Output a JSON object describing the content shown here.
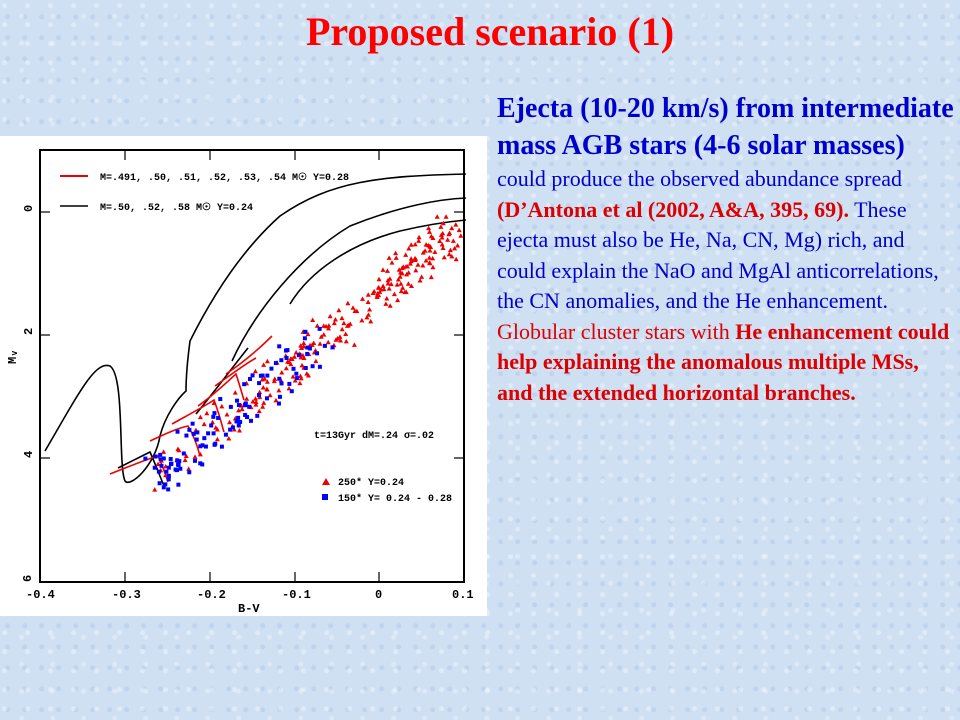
{
  "slide": {
    "title": "Proposed scenario (1)",
    "heading": "Ejecta (10-20 km/s) from intermediate mass AGB stars (4-6 solar masses)",
    "para1_blue": "could produce the observed abundance spread ",
    "para1_red_citation": "(D’Antona et al (2002, A&A, 395, 69).",
    "para1_blue_end": " These ejecta must also be He, Na, CN, Mg) rich, and could explain the NaO and MgAl anticorrelations, the CN anomalies, and the He enhancement.",
    "para2_red": "Globular cluster stars with ",
    "para2_red_bold": "He enhancement could help explaining the anomalous multiple MSs, and the extended horizontal branches."
  },
  "colors": {
    "title": "#ff0000",
    "text_blue": "#0000cc",
    "text_red": "#dd0000",
    "background": "#cfe0f3"
  },
  "figure": {
    "legend_red": "M=.491, .50, .51, .52, .53, .54 M☉ Y=0.28",
    "legend_black": "M=.50, .52, .58 M☉ Y=0.24",
    "annotation_model": "t=13Gyr dM=.24 σ=.02",
    "legend_tri": "250* Y=0.24",
    "legend_sq": "150* Y= 0.24 - 0.28",
    "xlabel": "B-V",
    "ylabel": "Mᵥ",
    "xticks": [
      "-0.4",
      "-0.3",
      "-0.2",
      "-0.1",
      "0",
      "0.1"
    ],
    "yticks": [
      "0",
      "2",
      "4",
      "6"
    ]
  },
  "chart_data": {
    "type": "scatter",
    "xlabel": "B-V",
    "ylabel": "Mᵥ",
    "xlim": [
      -0.4,
      0.1
    ],
    "ylim": [
      6,
      -1
    ],
    "series": [
      {
        "name": "250* Y=0.24",
        "marker": "triangle",
        "color": "#ff0000"
      },
      {
        "name": "150* Y= 0.24 - 0.28",
        "marker": "square",
        "color": "#0000ff"
      },
      {
        "name": "M=.491, .50, .51, .52, .53, .54 M☉ Y=0.28",
        "marker": "line",
        "color": "#ff0000"
      },
      {
        "name": "M=.50, .52, .58 M☉ Y=0.24",
        "marker": "line",
        "color": "#000000"
      }
    ]
  }
}
